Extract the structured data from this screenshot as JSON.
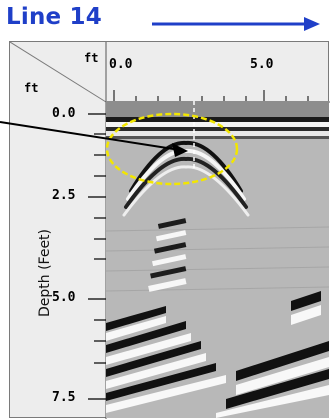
{
  "title": "Line 14",
  "axes": {
    "corner_x_unit": "ft",
    "corner_y_unit": "ft",
    "x_ticks": [
      "0.0",
      "5.0"
    ],
    "y_ticks": [
      "0.0",
      "2.5",
      "5.0",
      "7.5"
    ],
    "y_label": "Depth (Feet)"
  },
  "colors": {
    "title": "#1f3fc8",
    "highlight": "#f2e600",
    "frame_bg": "#ededed"
  },
  "icons": {
    "arrow": "right-arrow-icon",
    "pointer": "pointer-arrow-icon"
  }
}
